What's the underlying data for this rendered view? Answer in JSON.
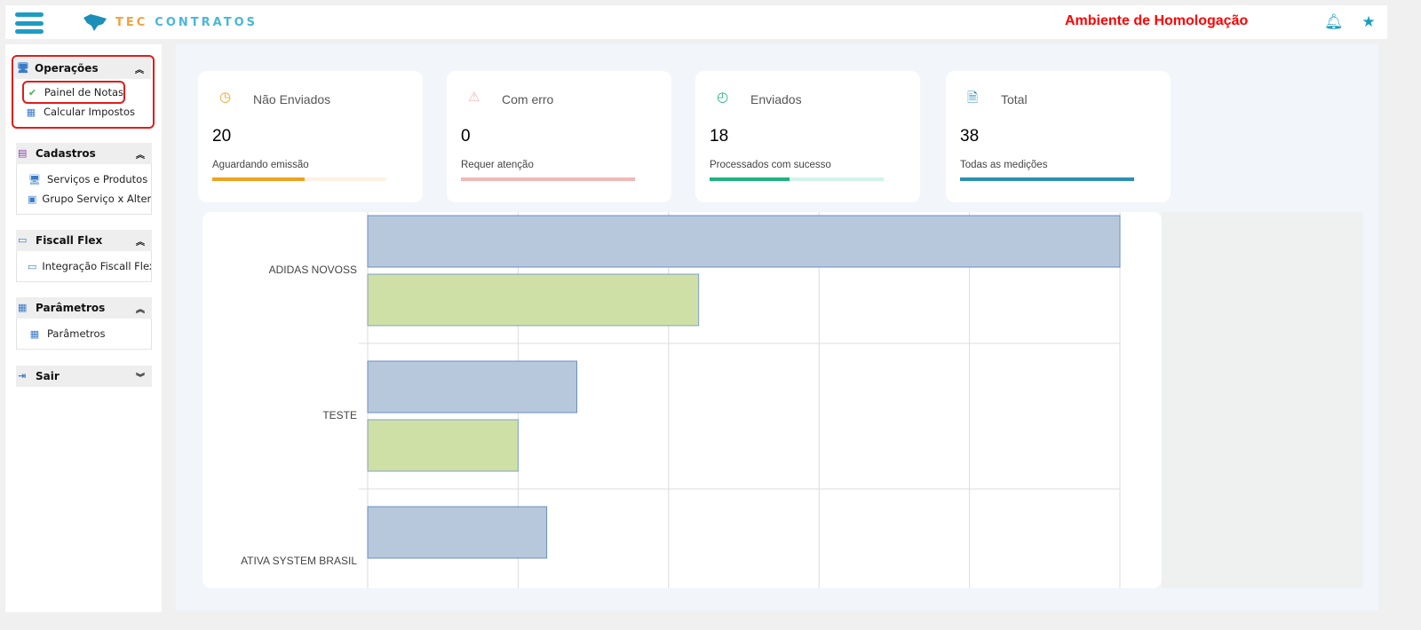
{
  "header": {
    "logo_part1": "TEC",
    "logo_part2": "CONTRATOS",
    "environment": "Ambiente de Homologação",
    "icons": [
      "menu-icon",
      "bell-icon",
      "star-icon"
    ]
  },
  "sidebar": {
    "groups": [
      {
        "title": "Operações",
        "expanded": true,
        "items": [
          {
            "label": "Painel de Notas",
            "active": true
          },
          {
            "label": "Calcular Impostos"
          }
        ]
      },
      {
        "title": "Cadastros",
        "expanded": true,
        "items": [
          {
            "label": "Serviços e Produtos"
          },
          {
            "label": "Grupo Serviço x Alter…"
          }
        ]
      },
      {
        "title": "Fiscall Flex",
        "expanded": true,
        "items": [
          {
            "label": "Integração Fiscall Flex"
          }
        ]
      },
      {
        "title": "Parâmetros",
        "expanded": true,
        "items": [
          {
            "label": "Parâmetros"
          }
        ]
      },
      {
        "title": "Sair",
        "expanded": false,
        "items": []
      }
    ]
  },
  "cards": [
    {
      "title": "Não Enviados",
      "value": "20",
      "subtitle": "Aguardando emissão",
      "progress": 0.53,
      "color": "#f0a21f",
      "track": "#fdf1e4",
      "icon": "clock-icon"
    },
    {
      "title": "Com erro",
      "value": "0",
      "subtitle": "Requer atenção",
      "progress": 1.0,
      "color": "#f0b8b8",
      "track": "#f0b8b8",
      "icon": "warning-icon"
    },
    {
      "title": "Enviados",
      "value": "18",
      "subtitle": "Processados com sucesso",
      "progress": 0.46,
      "color": "#1fb37e",
      "track": "#cff5e8",
      "icon": "check-circle-icon"
    },
    {
      "title": "Total",
      "value": "38",
      "subtitle": "Todas as medições",
      "progress": 1.0,
      "color": "#2a8fb3",
      "track": "#2a8fb3",
      "icon": "document-icon"
    }
  ],
  "chart_data": {
    "type": "bar",
    "orientation": "horizontal",
    "categories": [
      "ADIDAS NOVOSS",
      "TESTE",
      "ATIVA SYSTEM BRASIL"
    ],
    "series": [
      {
        "values": [
          5.0,
          1.39,
          1.19
        ],
        "color": "#b8c8dc"
      },
      {
        "values": [
          2.2,
          1.0,
          null
        ],
        "color": "#cfe0a6"
      }
    ],
    "xlim": [
      0,
      5
    ],
    "grid": true
  }
}
